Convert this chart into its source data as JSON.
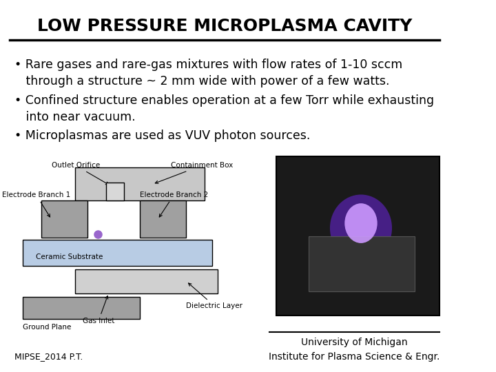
{
  "title": "LOW PRESSURE MICROPLASMA CAVITY",
  "bullet1_line1": "• Rare gases and rare-gas mixtures with flow rates of 1-10 sccm",
  "bullet1_line2": "   through a structure ~ 2 mm wide with power of a few watts.",
  "bullet2_line1": "• Confined structure enables operation at a few Torr while exhausting",
  "bullet2_line2": "   into near vacuum.",
  "bullet3": "• Microplasmas are used as VUV photon sources.",
  "footer_left": "MIPSE_2014 P.T.",
  "footer_right1": "University of Michigan",
  "footer_right2": "Institute for Plasma Science & Engr.",
  "bg_color": "#ffffff",
  "text_color": "#000000",
  "title_fontsize": 18,
  "body_fontsize": 12.5,
  "footer_fontsize": 10
}
